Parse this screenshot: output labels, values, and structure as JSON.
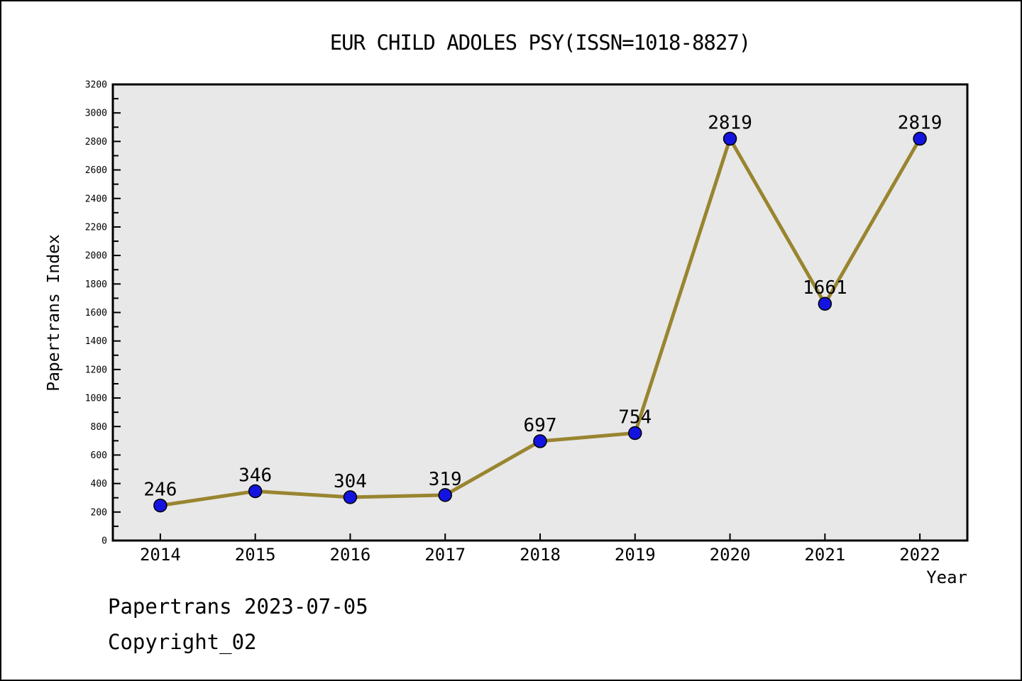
{
  "chart_data": {
    "type": "line",
    "title": "EUR CHILD ADOLES PSY(ISSN=1018-8827)",
    "xlabel": "Year",
    "ylabel": "Papertrans Index",
    "categories": [
      "2014",
      "2015",
      "2016",
      "2017",
      "2018",
      "2019",
      "2020",
      "2021",
      "2022"
    ],
    "series": [
      {
        "name": "Papertrans Index",
        "values": [
          246,
          346,
          304,
          319,
          697,
          754,
          2819,
          1661,
          2819
        ]
      }
    ],
    "point_labels": [
      "246",
      "346",
      "304",
      "319",
      "697",
      "754",
      "2819",
      "1661",
      "2819"
    ],
    "ylim": [
      0,
      3200
    ],
    "ytick_step": 200,
    "yminor_step": 100,
    "grid": false,
    "legend_position": "none",
    "colors": {
      "line": "#998530",
      "marker_fill": "#1414e0",
      "marker_edge": "#000000",
      "plot_background": "#e8e8e8",
      "axis": "#000000",
      "text": "#000000"
    }
  },
  "footer": {
    "line1": "Papertrans 2023-07-05",
    "line2": "Copyright_02"
  }
}
